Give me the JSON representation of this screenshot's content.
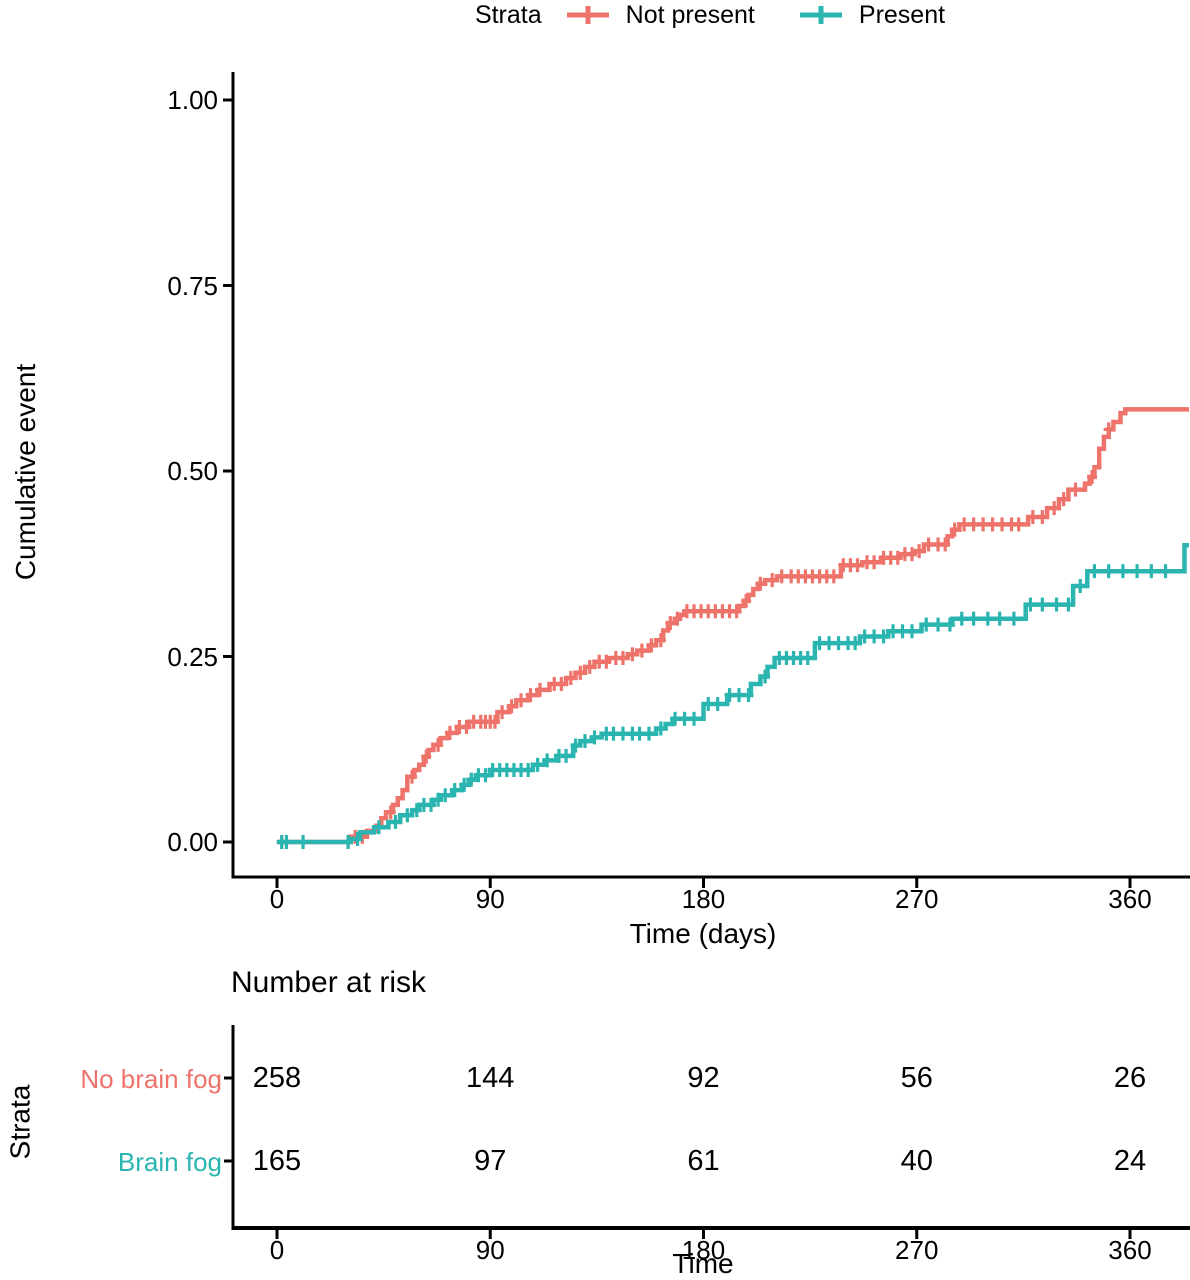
{
  "page": {
    "background": "#ffffff"
  },
  "legend": {
    "title": "Strata",
    "items": [
      {
        "label": "Not present",
        "color": "#EE736B"
      },
      {
        "label": "Present",
        "color": "#2AB5B1"
      }
    ]
  },
  "main_plot": {
    "ylabel": "Cumulative event",
    "xlabel": "Time (days)"
  },
  "risk_table": {
    "title": "Number at risk",
    "ylabel": "Strata",
    "xlabel": "Time",
    "time_ticks": [
      0,
      90,
      180,
      270,
      360
    ],
    "rows": [
      {
        "label": "No brain fog",
        "color": "#EE736B",
        "values": [
          258,
          144,
          92,
          56,
          26
        ]
      },
      {
        "label": "Brain fog",
        "color": "#2AB5B1",
        "values": [
          165,
          97,
          61,
          40,
          24
        ]
      }
    ]
  },
  "chart_data": {
    "type": "line",
    "subtype": "kaplan-meier-cumulative-event-step-curves",
    "title": "",
    "xlabel": "Time (days)",
    "ylabel": "Cumulative event",
    "xlim": [
      -20,
      385
    ],
    "ylim": [
      0,
      1.0
    ],
    "x_ticks": [
      0,
      90,
      180,
      270,
      360
    ],
    "y_ticks": [
      {
        "value": 0.0,
        "label": "0.00"
      },
      {
        "value": 0.25,
        "label": "0.25"
      },
      {
        "value": 0.5,
        "label": "0.50"
      },
      {
        "value": 0.75,
        "label": "0.75"
      },
      {
        "value": 1.0,
        "label": "1.00"
      }
    ],
    "grid": false,
    "legend_position": "top",
    "end_time": 385,
    "series": [
      {
        "name": "Not present",
        "color": "#EE736B",
        "steps": [
          [
            0,
            0
          ],
          [
            31,
            0.007
          ],
          [
            38,
            0.015
          ],
          [
            42,
            0.022
          ],
          [
            44,
            0.032
          ],
          [
            46,
            0.04
          ],
          [
            49,
            0.05
          ],
          [
            51,
            0.059
          ],
          [
            53,
            0.07
          ],
          [
            55,
            0.088
          ],
          [
            58,
            0.097
          ],
          [
            60,
            0.104
          ],
          [
            62,
            0.115
          ],
          [
            64,
            0.124
          ],
          [
            66,
            0.131
          ],
          [
            69,
            0.14
          ],
          [
            72,
            0.147
          ],
          [
            76,
            0.155
          ],
          [
            81,
            0.162
          ],
          [
            93,
            0.175
          ],
          [
            98,
            0.183
          ],
          [
            101,
            0.191
          ],
          [
            106,
            0.198
          ],
          [
            110,
            0.205
          ],
          [
            115,
            0.213
          ],
          [
            122,
            0.221
          ],
          [
            126,
            0.228
          ],
          [
            130,
            0.236
          ],
          [
            134,
            0.243
          ],
          [
            140,
            0.248
          ],
          [
            148,
            0.253
          ],
          [
            152,
            0.258
          ],
          [
            157,
            0.265
          ],
          [
            160,
            0.272
          ],
          [
            163,
            0.285
          ],
          [
            165,
            0.295
          ],
          [
            168,
            0.301
          ],
          [
            170,
            0.306
          ],
          [
            172,
            0.311
          ],
          [
            195,
            0.318
          ],
          [
            197,
            0.325
          ],
          [
            199,
            0.333
          ],
          [
            201,
            0.341
          ],
          [
            203,
            0.348
          ],
          [
            206,
            0.353
          ],
          [
            211,
            0.358
          ],
          [
            238,
            0.373
          ],
          [
            247,
            0.377
          ],
          [
            255,
            0.383
          ],
          [
            263,
            0.388
          ],
          [
            269,
            0.392
          ],
          [
            273,
            0.401
          ],
          [
            283,
            0.412
          ],
          [
            285,
            0.421
          ],
          [
            288,
            0.428
          ],
          [
            317,
            0.438
          ],
          [
            325,
            0.45
          ],
          [
            330,
            0.462
          ],
          [
            334,
            0.475
          ],
          [
            341,
            0.483
          ],
          [
            343,
            0.492
          ],
          [
            345,
            0.505
          ],
          [
            347,
            0.53
          ],
          [
            349,
            0.546
          ],
          [
            351,
            0.556
          ],
          [
            353,
            0.566
          ],
          [
            356,
            0.578
          ],
          [
            358,
            0.583
          ]
        ],
        "censor_times": [
          2,
          30,
          33,
          36,
          48,
          57,
          63,
          68,
          73,
          77,
          80,
          83,
          86,
          88,
          90,
          92,
          95,
          99,
          103,
          107,
          111,
          117,
          120,
          124,
          128,
          132,
          136,
          139,
          143,
          146,
          150,
          154,
          158,
          162,
          166,
          169,
          173,
          176,
          179,
          182,
          185,
          188,
          191,
          194,
          198,
          204,
          209,
          213,
          217,
          220,
          223,
          226,
          229,
          232,
          235,
          239,
          242,
          245,
          249,
          252,
          256,
          259,
          262,
          265,
          268,
          271,
          275,
          279,
          282,
          286,
          290,
          294,
          298,
          302,
          306,
          310,
          313,
          319,
          323,
          328,
          332,
          337,
          344,
          351
        ]
      },
      {
        "name": "Present",
        "color": "#2AB5B1",
        "steps": [
          [
            0,
            0
          ],
          [
            31,
            0.004
          ],
          [
            35,
            0.013
          ],
          [
            41,
            0.02
          ],
          [
            47,
            0.027
          ],
          [
            52,
            0.036
          ],
          [
            57,
            0.043
          ],
          [
            60,
            0.05
          ],
          [
            66,
            0.057
          ],
          [
            69,
            0.063
          ],
          [
            74,
            0.07
          ],
          [
            78,
            0.077
          ],
          [
            81,
            0.084
          ],
          [
            84,
            0.09
          ],
          [
            90,
            0.097
          ],
          [
            108,
            0.104
          ],
          [
            113,
            0.11
          ],
          [
            118,
            0.116
          ],
          [
            125,
            0.13
          ],
          [
            128,
            0.136
          ],
          [
            133,
            0.141
          ],
          [
            137,
            0.146
          ],
          [
            160,
            0.153
          ],
          [
            164,
            0.159
          ],
          [
            167,
            0.166
          ],
          [
            180,
            0.186
          ],
          [
            190,
            0.198
          ],
          [
            200,
            0.213
          ],
          [
            204,
            0.223
          ],
          [
            207,
            0.236
          ],
          [
            210,
            0.248
          ],
          [
            227,
            0.268
          ],
          [
            246,
            0.277
          ],
          [
            258,
            0.284
          ],
          [
            272,
            0.293
          ],
          [
            285,
            0.301
          ],
          [
            316,
            0.32
          ],
          [
            336,
            0.345
          ],
          [
            342,
            0.365
          ],
          [
            383,
            0.4
          ]
        ],
        "censor_times": [
          2,
          4,
          11,
          30,
          34,
          43,
          50,
          55,
          59,
          62,
          65,
          68,
          71,
          75,
          79,
          82,
          85,
          88,
          91,
          94,
          97,
          100,
          103,
          106,
          110,
          114,
          119,
          122,
          126,
          130,
          134,
          139,
          142,
          146,
          150,
          153,
          157,
          162,
          168,
          172,
          176,
          182,
          186,
          191,
          195,
          199,
          206,
          212,
          215,
          218,
          221,
          224,
          229,
          233,
          237,
          241,
          244,
          248,
          252,
          256,
          260,
          264,
          268,
          274,
          279,
          284,
          289,
          294,
          300,
          305,
          311,
          318,
          323,
          329,
          334,
          339,
          345,
          351,
          357,
          363,
          369,
          375
        ]
      }
    ],
    "number_at_risk": {
      "title": "Number at risk",
      "strata_axis_label": "Strata",
      "time_axis_label": "Time",
      "times": [
        0,
        90,
        180,
        270,
        360
      ],
      "rows": [
        {
          "label": "No brain fog",
          "values": [
            258,
            144,
            92,
            56,
            26
          ]
        },
        {
          "label": "Brain fog",
          "values": [
            165,
            97,
            61,
            40,
            24
          ]
        }
      ]
    }
  }
}
